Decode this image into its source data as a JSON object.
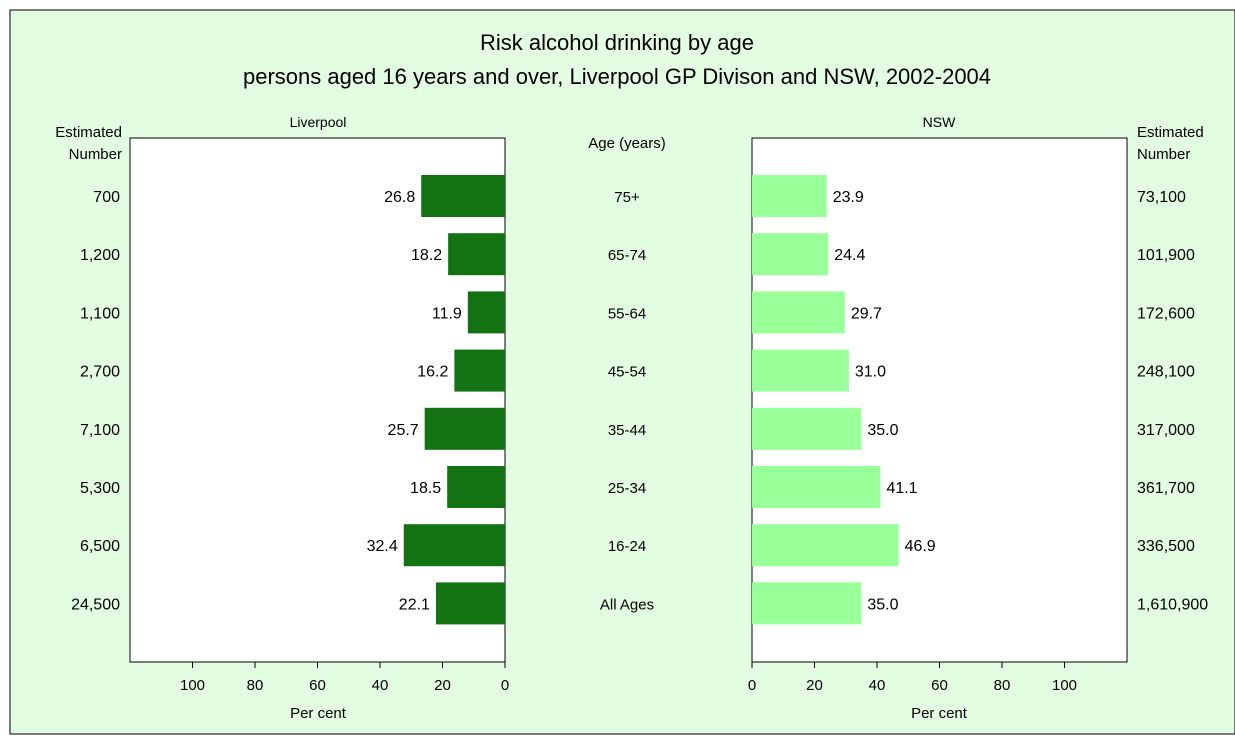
{
  "chart_data": {
    "type": "bar",
    "title_line1": "Risk alcohol drinking by age",
    "title_line2": "persons aged 16 years and over, Liverpool GP Divison and NSW, 2002-2004",
    "center_header": "Age (years)",
    "left_count_header": [
      "Estimated",
      "Number"
    ],
    "right_count_header": [
      "Estimated",
      "Number"
    ],
    "categories": [
      "75+",
      "65-74",
      "55-64",
      "45-54",
      "35-44",
      "25-34",
      "16-24",
      "All Ages"
    ],
    "series": [
      {
        "name": "Liverpool",
        "values": [
          26.8,
          18.2,
          11.9,
          16.2,
          25.7,
          18.5,
          32.4,
          22.1
        ],
        "labels": [
          "26.8",
          "18.2",
          "11.9",
          "16.2",
          "25.7",
          "18.5",
          "32.4",
          "22.1"
        ],
        "estimated_number": [
          "700",
          "1,200",
          "1,100",
          "2,700",
          "7,100",
          "5,300",
          "6,500",
          "24,500"
        ],
        "color": "#137313"
      },
      {
        "name": "NSW",
        "values": [
          23.9,
          24.4,
          29.7,
          31.0,
          35.0,
          41.1,
          46.9,
          35.0
        ],
        "labels": [
          "23.9",
          "24.4",
          "29.7",
          "31.0",
          "35.0",
          "41.1",
          "46.9",
          "35.0"
        ],
        "estimated_number": [
          "73,100",
          "101,900",
          "172,600",
          "248,100",
          "317,000",
          "361,700",
          "336,500",
          "1,610,900"
        ],
        "color": "#99ff99"
      }
    ],
    "xlabel": "Per cent",
    "xlim": [
      0,
      120
    ],
    "xticks": [
      0,
      20,
      40,
      60,
      80,
      100
    ],
    "colors": {
      "background": "#e3fde3",
      "plot_background": "#ffffff",
      "border": "#000000"
    }
  }
}
